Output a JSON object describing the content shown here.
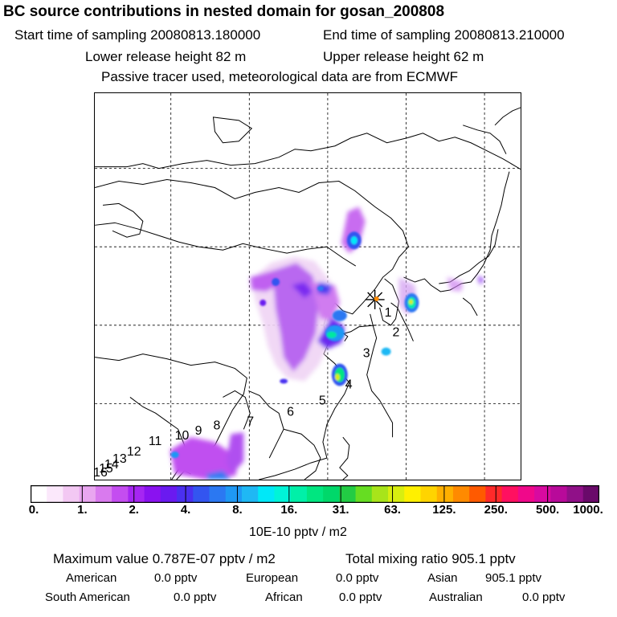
{
  "title": "BC  source contributions in nested domain for gosan_200808",
  "header": {
    "start_label": "Start time of sampling 20080813.180000",
    "end_label": "End time of sampling 20080813.210000",
    "lower_label": "Lower release height   82 m",
    "upper_label": "Upper release height   62 m",
    "note": "Passive tracer used, meteorological data are from ECMWF"
  },
  "map": {
    "site_numbers": [
      "1",
      "2",
      "3",
      "4",
      "5",
      "6",
      "7",
      "8",
      "9",
      "10",
      "11",
      "12",
      "13",
      "14",
      "15",
      "16"
    ]
  },
  "colorbar": {
    "ticks": [
      "0.",
      "1.",
      "2.",
      "4.",
      "8.",
      "16.",
      "31.",
      "63.",
      "125.",
      "250.",
      "500.",
      "1000."
    ],
    "colors": [
      "#ffffff",
      "#fbe8fb",
      "#f3c8f3",
      "#e9a6f0",
      "#d97aee",
      "#c44df0",
      "#a626f2",
      "#8a12f0",
      "#6a1af0",
      "#4a30f0",
      "#3355f0",
      "#2b78f2",
      "#1f98f4",
      "#1fb8f4",
      "#00e8f8",
      "#00f4d8",
      "#00f0a8",
      "#00e680",
      "#00d86a",
      "#22cc44",
      "#66dd22",
      "#a8e41a",
      "#d8ee10",
      "#fff000",
      "#ffd400",
      "#ffb000",
      "#ff8a00",
      "#ff5a00",
      "#ff2a2a",
      "#ff1060",
      "#f0088a",
      "#d80aa0",
      "#b80a9a",
      "#901088",
      "#6a0a6a"
    ],
    "unit": "10E-10 pptv / m2"
  },
  "summary": {
    "maximum": "Maximum value  0.787E-07 pptv / m2",
    "total": "Total mixing ratio      905.1 pptv",
    "regions": [
      {
        "name": "American",
        "value": "0.0 pptv"
      },
      {
        "name": "European",
        "value": "0.0 pptv"
      },
      {
        "name": "Asian",
        "value": "905.1 pptv"
      },
      {
        "name": "South American",
        "value": "0.0 pptv"
      },
      {
        "name": "African",
        "value": "0.0 pptv"
      },
      {
        "name": "Australian",
        "value": "0.0 pptv"
      }
    ]
  }
}
